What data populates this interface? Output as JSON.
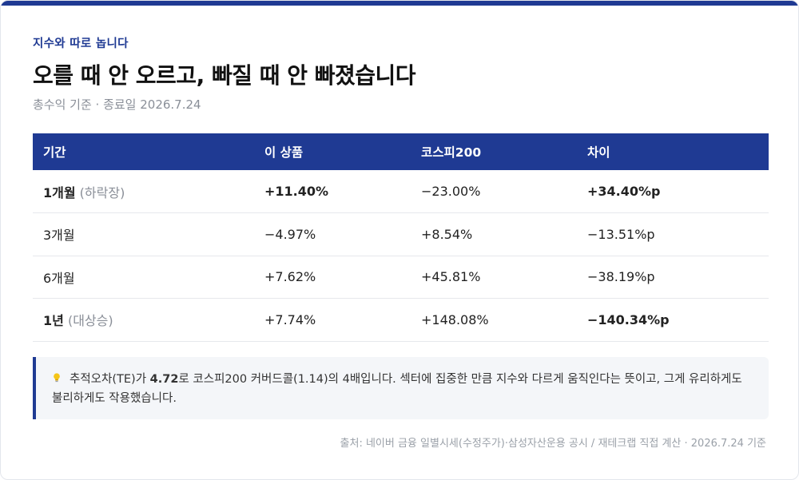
{
  "header": {
    "eyebrow": "지수와 따로 놉니다",
    "title": "오를 때 안 오르고, 빠질 때 안 빠졌습니다",
    "subtitle": "총수익 기준 · 종료일 2026.7.24"
  },
  "table": {
    "columns": [
      "기간",
      "이 상품",
      "코스피200",
      "차이"
    ],
    "rows": [
      {
        "period": "1개월",
        "period_note": "(하락장)",
        "product": "+11.40%",
        "kospi": "−23.00%",
        "diff": "+34.40%p",
        "emphasis": "pos"
      },
      {
        "period": "3개월",
        "period_note": "",
        "product": "−4.97%",
        "kospi": "+8.54%",
        "diff": "−13.51%p",
        "emphasis": "none"
      },
      {
        "period": "6개월",
        "period_note": "",
        "product": "+7.62%",
        "kospi": "+45.81%",
        "diff": "−38.19%p",
        "emphasis": "none"
      },
      {
        "period": "1년",
        "period_note": "(대상승)",
        "product": "+7.74%",
        "kospi": "+148.08%",
        "diff": "−140.34%p",
        "emphasis": "neg"
      }
    ]
  },
  "note": {
    "icon": "lightbulb-icon",
    "text_1": "추적오차(TE)가 ",
    "te_value": "4.72",
    "text_2": "로 코스피200 커버드콜(1.14)의 4배입니다. 섹터에 집중한 만큼 지수와 다르게 움직인다는 뜻이고, 그게 유리하게도 불리하게도 작용했습니다."
  },
  "source": "출처: 네이버 금융 일별시세(수정주가)·삼성자산운용 공시 / 재테크랩 직접 계산 · 2026.7.24 기준",
  "colors": {
    "accent": "#1f3a93",
    "positive": "#1e8a3e",
    "negative": "#c0392b"
  }
}
